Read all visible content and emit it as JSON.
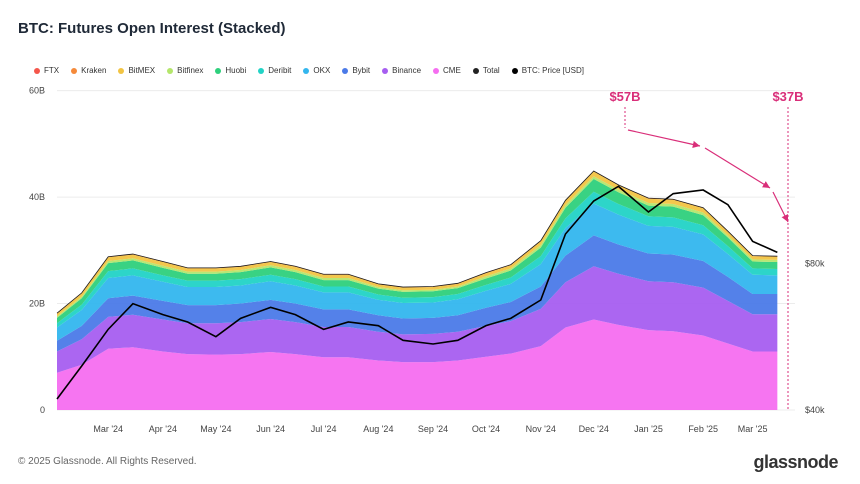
{
  "title": "BTC: Futures Open Interest (Stacked)",
  "footer": "© 2025 Glassnode. All Rights Reserved.",
  "brand": "glassnode",
  "legend": [
    {
      "label": "FTX",
      "color": "#f4564b"
    },
    {
      "label": "Kraken",
      "color": "#f58a3a"
    },
    {
      "label": "BitMEX",
      "color": "#f2c443"
    },
    {
      "label": "Bitfinex",
      "color": "#b4e66b"
    },
    {
      "label": "Huobi",
      "color": "#2ed07c"
    },
    {
      "label": "Deribit",
      "color": "#22d3c6"
    },
    {
      "label": "OKX",
      "color": "#33b6ee"
    },
    {
      "label": "Bybit",
      "color": "#4b7ae8"
    },
    {
      "label": "Binance",
      "color": "#a65ef0"
    },
    {
      "label": "CME",
      "color": "#f56ef0"
    },
    {
      "label": "Total",
      "color": "#222222"
    },
    {
      "label": "BTC: Price [USD]",
      "color": "#000000"
    }
  ],
  "annotations": [
    {
      "text": "$57B",
      "color": "#d92e79"
    },
    {
      "text": "$37B",
      "color": "#d92e79"
    }
  ],
  "chart_data": {
    "type": "area",
    "x": [
      "2024-02-01",
      "2024-02-15",
      "2024-03-01",
      "2024-03-15",
      "2024-04-01",
      "2024-04-15",
      "2024-05-01",
      "2024-05-15",
      "2024-06-01",
      "2024-06-15",
      "2024-07-01",
      "2024-07-15",
      "2024-08-01",
      "2024-08-15",
      "2024-09-01",
      "2024-09-15",
      "2024-10-01",
      "2024-10-15",
      "2024-11-01",
      "2024-11-15",
      "2024-12-01",
      "2024-12-15",
      "2025-01-01",
      "2025-01-15",
      "2025-02-01",
      "2025-02-15",
      "2025-03-01",
      "2025-03-15"
    ],
    "x_tick_labels": [
      "Mar '24",
      "Apr '24",
      "May '24",
      "Jun '24",
      "Jul '24",
      "Aug '24",
      "Sep '24",
      "Oct '24",
      "Nov '24",
      "Dec '24",
      "Jan '25",
      "Feb '25",
      "Mar '25"
    ],
    "y_left_ticks": [
      "0",
      "20B",
      "40B",
      "60B"
    ],
    "y_left_lim": [
      0,
      62
    ],
    "y_right_ticks": [
      "$40k",
      "$80k"
    ],
    "y_right_lim": [
      40000,
      130000
    ],
    "series": [
      {
        "name": "FTX",
        "values": [
          0,
          0,
          0,
          0,
          0,
          0,
          0,
          0,
          0,
          0,
          0,
          0,
          0,
          0,
          0,
          0,
          0,
          0,
          0,
          0,
          0,
          0,
          0,
          0,
          0,
          0,
          0,
          0
        ]
      },
      {
        "name": "Kraken",
        "values": [
          0.1,
          0.1,
          0.1,
          0.1,
          0.1,
          0.1,
          0.1,
          0.1,
          0.1,
          0.1,
          0.1,
          0.1,
          0.1,
          0.1,
          0.1,
          0.1,
          0.1,
          0.1,
          0.1,
          0.1,
          0.1,
          0.1,
          0.1,
          0.1,
          0.1,
          0.1,
          0.1,
          0.1
        ]
      },
      {
        "name": "BitMEX",
        "values": [
          0.5,
          0.6,
          0.7,
          0.7,
          0.7,
          0.6,
          0.6,
          0.6,
          0.6,
          0.6,
          0.6,
          0.6,
          0.5,
          0.5,
          0.5,
          0.5,
          0.6,
          0.6,
          0.7,
          0.8,
          0.9,
          0.8,
          0.8,
          0.8,
          0.8,
          0.7,
          0.6,
          0.6
        ]
      },
      {
        "name": "Bitfinex",
        "values": [
          0.3,
          0.3,
          0.4,
          0.4,
          0.4,
          0.4,
          0.4,
          0.4,
          0.4,
          0.4,
          0.4,
          0.4,
          0.3,
          0.3,
          0.3,
          0.3,
          0.4,
          0.4,
          0.5,
          0.5,
          0.5,
          0.5,
          0.5,
          0.5,
          0.5,
          0.4,
          0.4,
          0.4
        ]
      },
      {
        "name": "Huobi",
        "values": [
          1.0,
          1.2,
          1.5,
          1.5,
          1.4,
          1.3,
          1.3,
          1.3,
          1.4,
          1.3,
          1.2,
          1.2,
          1.1,
          1.1,
          1.1,
          1.1,
          1.2,
          1.3,
          1.6,
          2.0,
          2.4,
          2.2,
          2.0,
          2.0,
          1.9,
          1.6,
          1.3,
          1.3
        ]
      },
      {
        "name": "Deribit",
        "values": [
          0.8,
          1.0,
          1.3,
          1.3,
          1.2,
          1.2,
          1.2,
          1.2,
          1.2,
          1.2,
          1.1,
          1.1,
          1.0,
          1.0,
          1.0,
          1.0,
          1.1,
          1.2,
          1.5,
          1.8,
          2.2,
          2.0,
          1.8,
          1.8,
          1.7,
          1.5,
          1.2,
          1.2
        ]
      },
      {
        "name": "OKX",
        "values": [
          2.5,
          3.0,
          3.8,
          3.8,
          3.6,
          3.4,
          3.4,
          3.4,
          3.5,
          3.4,
          3.2,
          3.2,
          2.9,
          2.9,
          2.9,
          3.0,
          3.2,
          3.4,
          4.2,
          5.2,
          6.0,
          5.6,
          5.2,
          5.2,
          5.0,
          4.3,
          3.6,
          3.5
        ]
      },
      {
        "name": "Bybit",
        "values": [
          2.0,
          2.5,
          3.5,
          3.6,
          3.5,
          3.4,
          3.4,
          3.5,
          3.6,
          3.5,
          3.3,
          3.3,
          3.1,
          3.0,
          3.0,
          3.1,
          3.4,
          3.6,
          4.2,
          5.0,
          5.8,
          5.5,
          5.2,
          5.2,
          5.0,
          4.5,
          3.8,
          3.8
        ]
      },
      {
        "name": "Binance",
        "values": [
          4.0,
          4.8,
          6.0,
          6.1,
          6.0,
          5.8,
          5.9,
          6.0,
          6.2,
          6.0,
          5.7,
          5.7,
          5.4,
          5.2,
          5.3,
          5.4,
          5.8,
          6.1,
          7.0,
          8.5,
          10.0,
          9.6,
          9.2,
          9.2,
          9.0,
          8.0,
          7.0,
          7.0
        ]
      },
      {
        "name": "CME",
        "values": [
          7.0,
          8.5,
          11.5,
          11.8,
          11.0,
          10.5,
          10.4,
          10.5,
          10.9,
          10.5,
          9.9,
          9.9,
          9.3,
          9.0,
          9.0,
          9.3,
          10.0,
          10.6,
          12.0,
          15.5,
          17.0,
          16.0,
          15.0,
          14.8,
          14.0,
          12.5,
          11.0,
          11.0
        ]
      },
      {
        "name": "BTC: Price [USD]",
        "values": [
          43000,
          52000,
          62000,
          69000,
          66000,
          64000,
          60000,
          65000,
          68000,
          66000,
          62000,
          64000,
          63000,
          59000,
          58000,
          59000,
          63000,
          65000,
          70000,
          88000,
          97000,
          101000,
          94000,
          99000,
          100000,
          96000,
          86000,
          83000
        ]
      }
    ]
  }
}
